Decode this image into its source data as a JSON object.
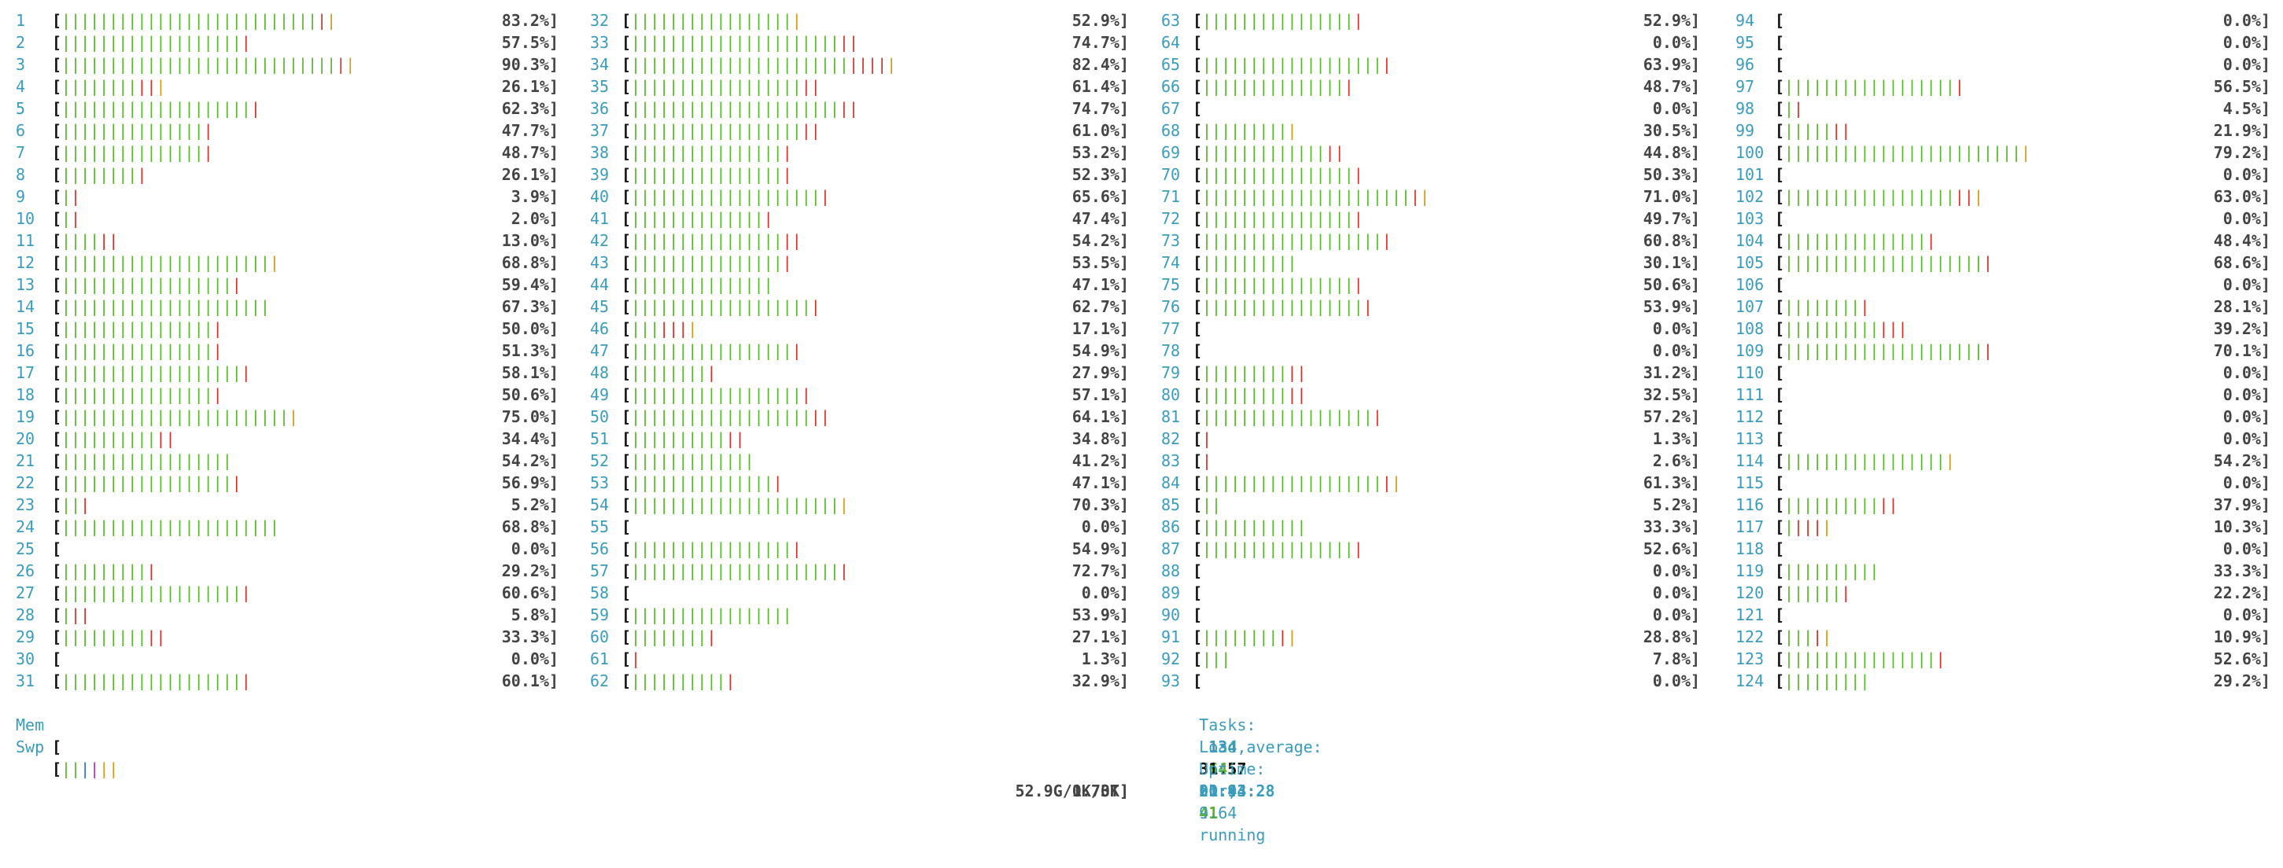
{
  "colors": {
    "green": "#5ab52e",
    "red": "#d0302b",
    "orange": "#d39a18",
    "blue": "#2f6fd6",
    "magenta": "#a838b9",
    "cyan": "#3a9cbd"
  },
  "columns": [
    {
      "cpus": [
        {
          "id": "1",
          "g": 27,
          "r": 1,
          "o": 1,
          "pct": "83.2%]"
        },
        {
          "id": "2",
          "g": 19,
          "r": 1,
          "o": 0,
          "pct": "57.5%]"
        },
        {
          "id": "3",
          "g": 29,
          "r": 1,
          "o": 1,
          "pct": "90.3%]"
        },
        {
          "id": "4",
          "g": 8,
          "r": 2,
          "o": 1,
          "pct": "26.1%]"
        },
        {
          "id": "5",
          "g": 20,
          "r": 1,
          "o": 0,
          "pct": "62.3%]"
        },
        {
          "id": "6",
          "g": 15,
          "r": 1,
          "o": 0,
          "pct": "47.7%]"
        },
        {
          "id": "7",
          "g": 15,
          "r": 1,
          "o": 0,
          "pct": "48.7%]"
        },
        {
          "id": "8",
          "g": 8,
          "r": 1,
          "o": 0,
          "pct": "26.1%]"
        },
        {
          "id": "9",
          "g": 1,
          "r": 1,
          "o": 0,
          "pct": "3.9%]"
        },
        {
          "id": "10",
          "g": 1,
          "r": 1,
          "o": 0,
          "pct": "2.0%]"
        },
        {
          "id": "11",
          "g": 4,
          "r": 2,
          "o": 0,
          "pct": "13.0%]"
        },
        {
          "id": "12",
          "g": 22,
          "r": 0,
          "o": 1,
          "pct": "68.8%]"
        },
        {
          "id": "13",
          "g": 18,
          "r": 1,
          "o": 0,
          "pct": "59.4%]"
        },
        {
          "id": "14",
          "g": 22,
          "r": 0,
          "o": 0,
          "pct": "67.3%]"
        },
        {
          "id": "15",
          "g": 16,
          "r": 1,
          "o": 0,
          "pct": "50.0%]"
        },
        {
          "id": "16",
          "g": 16,
          "r": 1,
          "o": 0,
          "pct": "51.3%]"
        },
        {
          "id": "17",
          "g": 19,
          "r": 1,
          "o": 0,
          "pct": "58.1%]"
        },
        {
          "id": "18",
          "g": 16,
          "r": 1,
          "o": 0,
          "pct": "50.6%]"
        },
        {
          "id": "19",
          "g": 24,
          "r": 0,
          "o": 1,
          "pct": "75.0%]"
        },
        {
          "id": "20",
          "g": 10,
          "r": 2,
          "o": 0,
          "pct": "34.4%]"
        },
        {
          "id": "21",
          "g": 18,
          "r": 0,
          "o": 0,
          "pct": "54.2%]"
        },
        {
          "id": "22",
          "g": 18,
          "r": 1,
          "o": 0,
          "pct": "56.9%]"
        },
        {
          "id": "23",
          "g": 2,
          "r": 1,
          "o": 0,
          "pct": "5.2%]"
        },
        {
          "id": "24",
          "g": 23,
          "r": 0,
          "o": 0,
          "pct": "68.8%]"
        },
        {
          "id": "25",
          "g": 0,
          "r": 0,
          "o": 0,
          "pct": "0.0%]"
        },
        {
          "id": "26",
          "g": 9,
          "r": 1,
          "o": 0,
          "pct": "29.2%]"
        },
        {
          "id": "27",
          "g": 19,
          "r": 1,
          "o": 0,
          "pct": "60.6%]"
        },
        {
          "id": "28",
          "g": 1,
          "r": 2,
          "o": 0,
          "pct": "5.8%]"
        },
        {
          "id": "29",
          "g": 9,
          "r": 2,
          "o": 0,
          "pct": "33.3%]"
        },
        {
          "id": "30",
          "g": 0,
          "r": 0,
          "o": 0,
          "pct": "0.0%]"
        },
        {
          "id": "31",
          "g": 19,
          "r": 1,
          "o": 0,
          "pct": "60.1%]"
        }
      ]
    },
    {
      "cpus": [
        {
          "id": "32",
          "g": 17,
          "r": 0,
          "o": 1,
          "pct": "52.9%]"
        },
        {
          "id": "33",
          "g": 22,
          "r": 2,
          "o": 0,
          "pct": "74.7%]"
        },
        {
          "id": "34",
          "g": 23,
          "r": 4,
          "o": 1,
          "pct": "82.4%]"
        },
        {
          "id": "35",
          "g": 18,
          "r": 2,
          "o": 0,
          "pct": "61.4%]"
        },
        {
          "id": "36",
          "g": 22,
          "r": 2,
          "o": 0,
          "pct": "74.7%]"
        },
        {
          "id": "37",
          "g": 18,
          "r": 2,
          "o": 0,
          "pct": "61.0%]"
        },
        {
          "id": "38",
          "g": 16,
          "r": 1,
          "o": 0,
          "pct": "53.2%]"
        },
        {
          "id": "39",
          "g": 16,
          "r": 1,
          "o": 0,
          "pct": "52.3%]"
        },
        {
          "id": "40",
          "g": 20,
          "r": 1,
          "o": 0,
          "pct": "65.6%]"
        },
        {
          "id": "41",
          "g": 14,
          "r": 1,
          "o": 0,
          "pct": "47.4%]"
        },
        {
          "id": "42",
          "g": 16,
          "r": 2,
          "o": 0,
          "pct": "54.2%]"
        },
        {
          "id": "43",
          "g": 16,
          "r": 1,
          "o": 0,
          "pct": "53.5%]"
        },
        {
          "id": "44",
          "g": 15,
          "r": 0,
          "o": 0,
          "pct": "47.1%]"
        },
        {
          "id": "45",
          "g": 19,
          "r": 1,
          "o": 0,
          "pct": "62.7%]"
        },
        {
          "id": "46",
          "g": 3,
          "r": 3,
          "o": 1,
          "pct": "17.1%]"
        },
        {
          "id": "47",
          "g": 17,
          "r": 1,
          "o": 0,
          "pct": "54.9%]"
        },
        {
          "id": "48",
          "g": 8,
          "r": 1,
          "o": 0,
          "pct": "27.9%]"
        },
        {
          "id": "49",
          "g": 18,
          "r": 1,
          "o": 0,
          "pct": "57.1%]"
        },
        {
          "id": "50",
          "g": 19,
          "r": 2,
          "o": 0,
          "pct": "64.1%]"
        },
        {
          "id": "51",
          "g": 10,
          "r": 2,
          "o": 0,
          "pct": "34.8%]"
        },
        {
          "id": "52",
          "g": 13,
          "r": 0,
          "o": 0,
          "pct": "41.2%]"
        },
        {
          "id": "53",
          "g": 15,
          "r": 1,
          "o": 0,
          "pct": "47.1%]"
        },
        {
          "id": "54",
          "g": 22,
          "r": 0,
          "o": 1,
          "pct": "70.3%]"
        },
        {
          "id": "55",
          "g": 0,
          "r": 0,
          "o": 0,
          "pct": "0.0%]"
        },
        {
          "id": "56",
          "g": 17,
          "r": 1,
          "o": 0,
          "pct": "54.9%]"
        },
        {
          "id": "57",
          "g": 22,
          "r": 1,
          "o": 0,
          "pct": "72.7%]"
        },
        {
          "id": "58",
          "g": 0,
          "r": 0,
          "o": 0,
          "pct": "0.0%]"
        },
        {
          "id": "59",
          "g": 17,
          "r": 0,
          "o": 0,
          "pct": "53.9%]"
        },
        {
          "id": "60",
          "g": 8,
          "r": 1,
          "o": 0,
          "pct": "27.1%]"
        },
        {
          "id": "61",
          "g": 0,
          "r": 1,
          "o": 0,
          "pct": "1.3%]"
        },
        {
          "id": "62",
          "g": 10,
          "r": 1,
          "o": 0,
          "pct": "32.9%]"
        }
      ]
    },
    {
      "cpus": [
        {
          "id": "63",
          "g": 16,
          "r": 1,
          "o": 0,
          "pct": "52.9%]"
        },
        {
          "id": "64",
          "g": 0,
          "r": 0,
          "o": 0,
          "pct": "0.0%]"
        },
        {
          "id": "65",
          "g": 19,
          "r": 1,
          "o": 0,
          "pct": "63.9%]"
        },
        {
          "id": "66",
          "g": 15,
          "r": 1,
          "o": 0,
          "pct": "48.7%]"
        },
        {
          "id": "67",
          "g": 0,
          "r": 0,
          "o": 0,
          "pct": "0.0%]"
        },
        {
          "id": "68",
          "g": 9,
          "r": 0,
          "o": 1,
          "pct": "30.5%]"
        },
        {
          "id": "69",
          "g": 13,
          "r": 2,
          "o": 0,
          "pct": "44.8%]"
        },
        {
          "id": "70",
          "g": 16,
          "r": 1,
          "o": 0,
          "pct": "50.3%]"
        },
        {
          "id": "71",
          "g": 22,
          "r": 1,
          "o": 1,
          "pct": "71.0%]"
        },
        {
          "id": "72",
          "g": 16,
          "r": 1,
          "o": 0,
          "pct": "49.7%]"
        },
        {
          "id": "73",
          "g": 19,
          "r": 1,
          "o": 0,
          "pct": "60.8%]"
        },
        {
          "id": "74",
          "g": 10,
          "r": 0,
          "o": 0,
          "pct": "30.1%]"
        },
        {
          "id": "75",
          "g": 16,
          "r": 1,
          "o": 0,
          "pct": "50.6%]"
        },
        {
          "id": "76",
          "g": 17,
          "r": 1,
          "o": 0,
          "pct": "53.9%]"
        },
        {
          "id": "77",
          "g": 0,
          "r": 0,
          "o": 0,
          "pct": "0.0%]"
        },
        {
          "id": "78",
          "g": 0,
          "r": 0,
          "o": 0,
          "pct": "0.0%]"
        },
        {
          "id": "79",
          "g": 9,
          "r": 2,
          "o": 0,
          "pct": "31.2%]"
        },
        {
          "id": "80",
          "g": 9,
          "r": 2,
          "o": 0,
          "pct": "32.5%]"
        },
        {
          "id": "81",
          "g": 18,
          "r": 1,
          "o": 0,
          "pct": "57.2%]"
        },
        {
          "id": "82",
          "g": 0,
          "r": 1,
          "o": 0,
          "pct": "1.3%]"
        },
        {
          "id": "83",
          "g": 0,
          "r": 1,
          "o": 0,
          "pct": "2.6%]"
        },
        {
          "id": "84",
          "g": 19,
          "r": 1,
          "o": 1,
          "pct": "61.3%]"
        },
        {
          "id": "85",
          "g": 2,
          "r": 0,
          "o": 0,
          "pct": "5.2%]"
        },
        {
          "id": "86",
          "g": 11,
          "r": 0,
          "o": 0,
          "pct": "33.3%]"
        },
        {
          "id": "87",
          "g": 16,
          "r": 1,
          "o": 0,
          "pct": "52.6%]"
        },
        {
          "id": "88",
          "g": 0,
          "r": 0,
          "o": 0,
          "pct": "0.0%]"
        },
        {
          "id": "89",
          "g": 0,
          "r": 0,
          "o": 0,
          "pct": "0.0%]"
        },
        {
          "id": "90",
          "g": 0,
          "r": 0,
          "o": 0,
          "pct": "0.0%]"
        },
        {
          "id": "91",
          "g": 8,
          "r": 1,
          "o": 1,
          "pct": "28.8%]"
        },
        {
          "id": "92",
          "g": 3,
          "r": 0,
          "o": 0,
          "pct": "7.8%]"
        },
        {
          "id": "93",
          "g": 0,
          "r": 0,
          "o": 0,
          "pct": "0.0%]"
        }
      ]
    },
    {
      "cpus": [
        {
          "id": "94",
          "g": 0,
          "r": 0,
          "o": 0,
          "pct": "0.0%]"
        },
        {
          "id": "95",
          "g": 0,
          "r": 0,
          "o": 0,
          "pct": "0.0%]"
        },
        {
          "id": "96",
          "g": 0,
          "r": 0,
          "o": 0,
          "pct": "0.0%]"
        },
        {
          "id": "97",
          "g": 18,
          "r": 1,
          "o": 0,
          "pct": "56.5%]"
        },
        {
          "id": "98",
          "g": 1,
          "r": 1,
          "o": 0,
          "pct": "4.5%]"
        },
        {
          "id": "99",
          "g": 5,
          "r": 2,
          "o": 0,
          "pct": "21.9%]"
        },
        {
          "id": "100",
          "g": 25,
          "r": 0,
          "o": 1,
          "pct": "79.2%]"
        },
        {
          "id": "101",
          "g": 0,
          "r": 0,
          "o": 0,
          "pct": "0.0%]"
        },
        {
          "id": "102",
          "g": 18,
          "r": 2,
          "o": 1,
          "pct": "63.0%]"
        },
        {
          "id": "103",
          "g": 0,
          "r": 0,
          "o": 0,
          "pct": "0.0%]"
        },
        {
          "id": "104",
          "g": 15,
          "r": 1,
          "o": 0,
          "pct": "48.4%]"
        },
        {
          "id": "105",
          "g": 21,
          "r": 1,
          "o": 0,
          "pct": "68.6%]"
        },
        {
          "id": "106",
          "g": 0,
          "r": 0,
          "o": 0,
          "pct": "0.0%]"
        },
        {
          "id": "107",
          "g": 8,
          "r": 1,
          "o": 0,
          "pct": "28.1%]"
        },
        {
          "id": "108",
          "g": 10,
          "r": 3,
          "o": 0,
          "pct": "39.2%]"
        },
        {
          "id": "109",
          "g": 21,
          "r": 1,
          "o": 0,
          "pct": "70.1%]"
        },
        {
          "id": "110",
          "g": 0,
          "r": 0,
          "o": 0,
          "pct": "0.0%]"
        },
        {
          "id": "111",
          "g": 0,
          "r": 0,
          "o": 0,
          "pct": "0.0%]"
        },
        {
          "id": "112",
          "g": 0,
          "r": 0,
          "o": 0,
          "pct": "0.0%]"
        },
        {
          "id": "113",
          "g": 0,
          "r": 0,
          "o": 0,
          "pct": "0.0%]"
        },
        {
          "id": "114",
          "g": 17,
          "r": 0,
          "o": 1,
          "pct": "54.2%]"
        },
        {
          "id": "115",
          "g": 0,
          "r": 0,
          "o": 0,
          "pct": "0.0%]"
        },
        {
          "id": "116",
          "g": 10,
          "r": 2,
          "o": 0,
          "pct": "37.9%]"
        },
        {
          "id": "117",
          "g": 1,
          "r": 3,
          "o": 1,
          "pct": "10.3%]"
        },
        {
          "id": "118",
          "g": 0,
          "r": 0,
          "o": 0,
          "pct": "0.0%]"
        },
        {
          "id": "119",
          "g": 10,
          "r": 0,
          "o": 0,
          "pct": "33.3%]"
        },
        {
          "id": "120",
          "g": 6,
          "r": 1,
          "o": 0,
          "pct": "22.2%]"
        },
        {
          "id": "121",
          "g": 0,
          "r": 0,
          "o": 0,
          "pct": "0.0%]"
        },
        {
          "id": "122",
          "g": 3,
          "r": 1,
          "o": 1,
          "pct": "10.9%]"
        },
        {
          "id": "123",
          "g": 16,
          "r": 1,
          "o": 0,
          "pct": "52.6%]"
        },
        {
          "id": "124",
          "g": 9,
          "r": 0,
          "o": 0,
          "pct": "29.2%]"
        }
      ]
    }
  ],
  "mem": {
    "label": "Mem",
    "value": "52.9G/1.73T]",
    "segs": [
      "g",
      "g",
      "bl",
      "mg",
      "o",
      "o"
    ]
  },
  "swp": {
    "label": "Swp",
    "value": "0K/0K]"
  },
  "tasks": {
    "label": "Tasks:",
    "count": "134",
    "sep1": ",",
    "thr": "645",
    "thr_label": "thr;",
    "running": "41",
    "running_label": "running"
  },
  "load": {
    "label": "Load average:",
    "v1": "31.57",
    "v5": "21.93",
    "v15": "9.64"
  },
  "uptime": {
    "label": "Uptime:",
    "value": "00:44:28"
  }
}
